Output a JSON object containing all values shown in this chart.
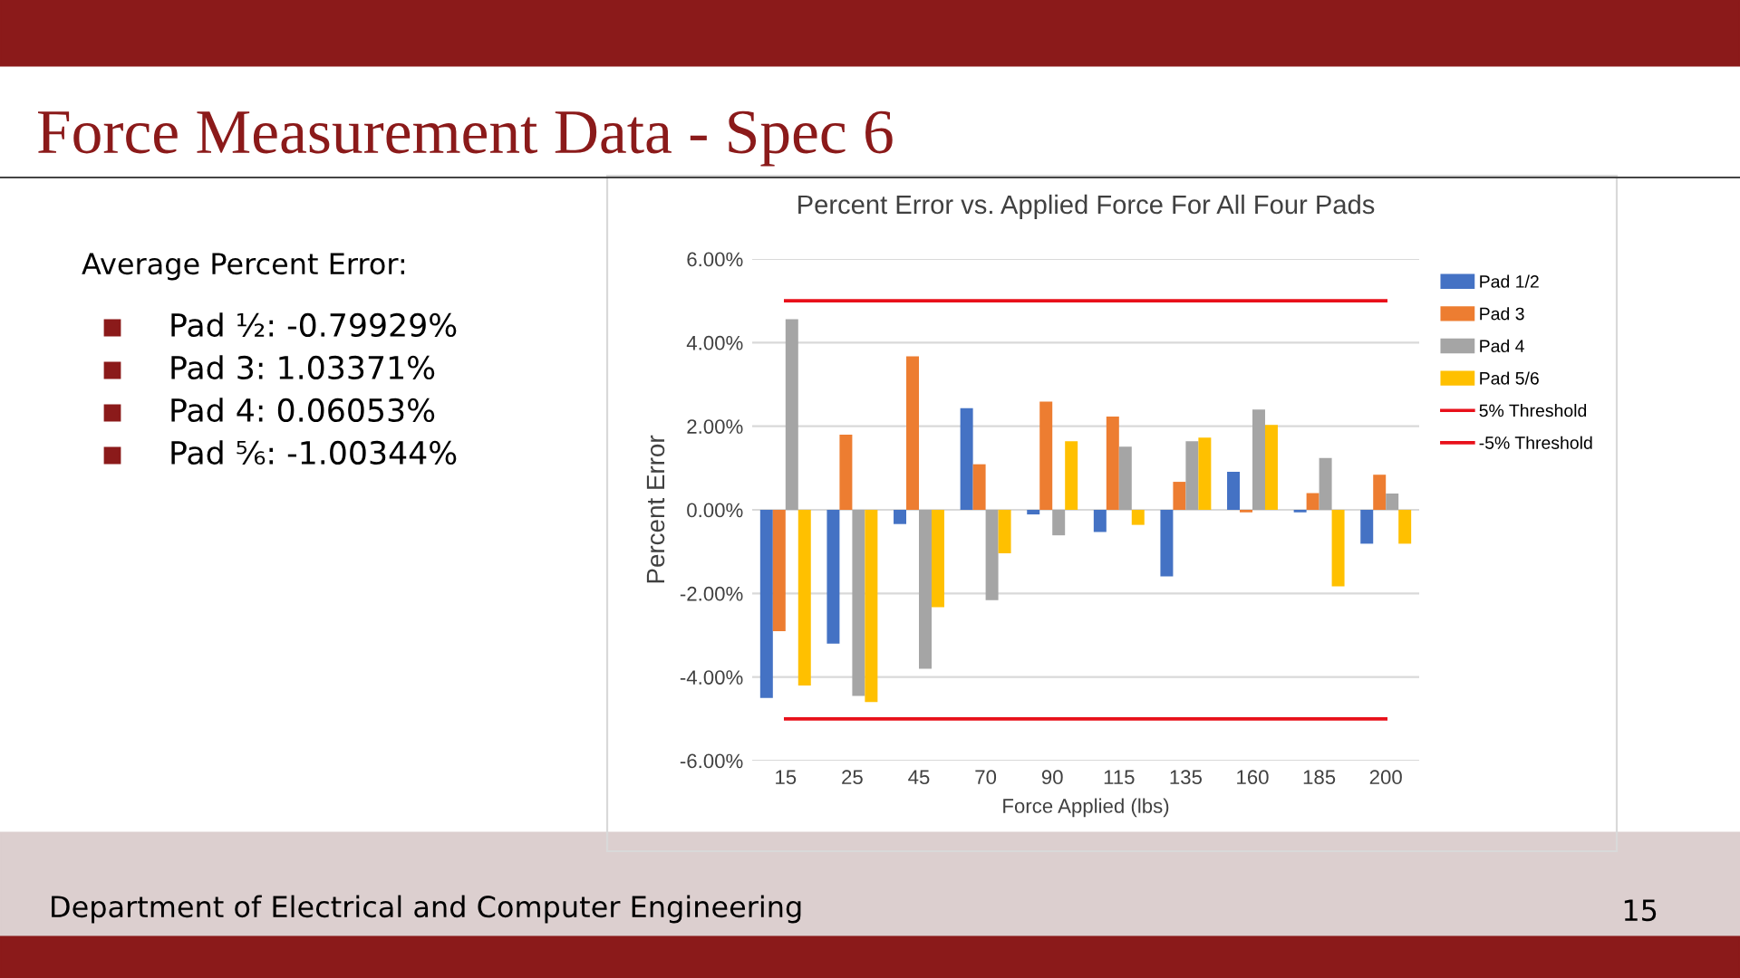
{
  "chart_data": {
    "type": "bar",
    "title": "Force Measurement Data - Spec 6",
    "subtitle": "Percent Error vs. Applied Force For All Four Pads",
    "xlabel": "Force Applied (lbs)",
    "ylabel": "Percent Error",
    "categories": [
      "15",
      "25",
      "45",
      "70",
      "90",
      "115",
      "135",
      "160",
      "185",
      "200"
    ],
    "series": [
      {
        "name": "Pad 1/2",
        "color": "#4472c4",
        "values": [
          -4.5,
          -3.2,
          -0.34,
          2.43,
          -0.11,
          -0.53,
          -1.59,
          0.91,
          -0.06,
          -0.81
        ]
      },
      {
        "name": "Pad 3",
        "color": "#ed7d31",
        "values": [
          -2.9,
          1.8,
          3.67,
          1.09,
          2.59,
          2.23,
          0.67,
          -0.06,
          0.4,
          0.84
        ]
      },
      {
        "name": "Pad 4",
        "color": "#a5a5a5",
        "values": [
          4.56,
          -4.45,
          -3.8,
          -2.16,
          -0.61,
          1.51,
          1.64,
          2.4,
          1.24,
          0.39
        ]
      },
      {
        "name": "Pad 5/6",
        "color": "#ffc000",
        "values": [
          -4.2,
          -4.6,
          -2.33,
          -1.04,
          1.64,
          -0.36,
          1.73,
          2.03,
          -1.83,
          -0.81
        ]
      },
      {
        "name": "5% Threshold",
        "type": "line",
        "color": "#e8101a",
        "values": [
          5,
          5,
          5,
          5,
          5,
          5,
          5,
          5,
          5,
          5
        ]
      },
      {
        "name": "-5% Threshold",
        "type": "line",
        "color": "#e8101a",
        "values": [
          -5,
          -5,
          -5,
          -5,
          -5,
          -5,
          -5,
          -5,
          -5,
          -5
        ]
      }
    ],
    "ylim": [
      -6,
      6
    ],
    "yticks": [
      {
        "value": -6,
        "label": "-6.00%"
      },
      {
        "value": -4,
        "label": "-4.00%"
      },
      {
        "value": -2,
        "label": "-2.00%"
      },
      {
        "value": 0,
        "label": "0.00%"
      },
      {
        "value": 2,
        "label": "2.00%"
      },
      {
        "value": 4,
        "label": "4.00%"
      },
      {
        "value": 6,
        "label": "6.00%"
      }
    ],
    "grid": "y",
    "legend": "right",
    "marker": "none",
    "line_style": "solid",
    "annotations": [
      "Average Percent Error:",
      "Pad ½: -0.79929%",
      "Pad 3: 1.03371%",
      "Pad 4: 0.06053%",
      "Pad ⅚: -1.00344%",
      "Department of Electrical and Computer Engineering",
      "15"
    ]
  }
}
